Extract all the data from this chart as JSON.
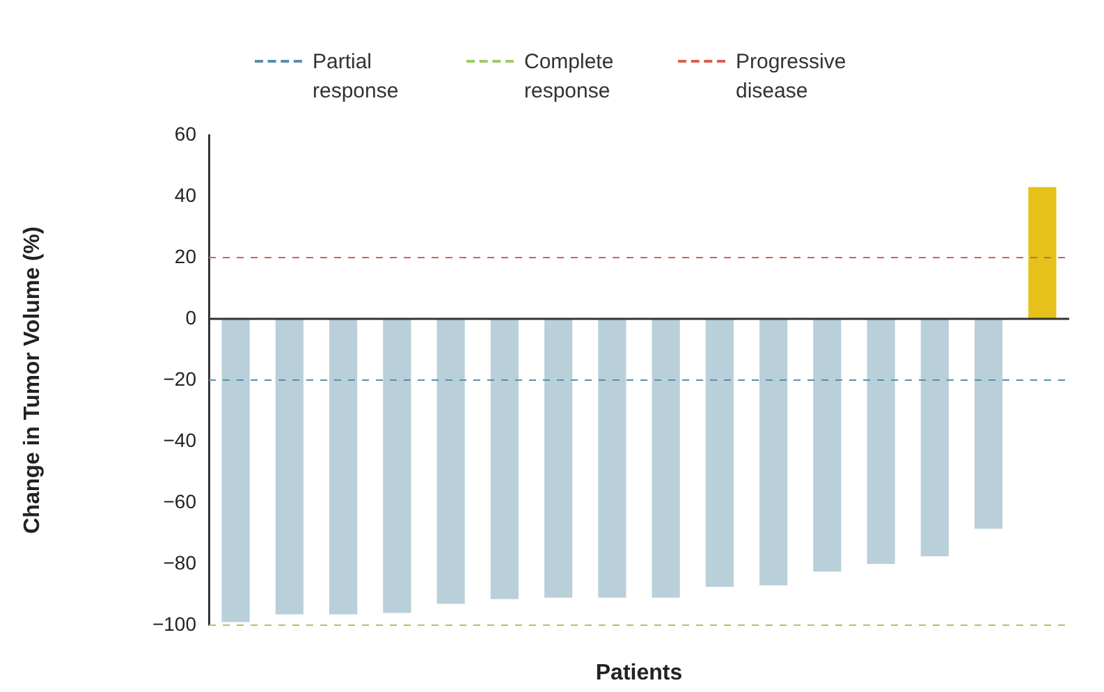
{
  "chart_data": {
    "type": "bar",
    "xlabel": "Patients",
    "ylabel": "Change in Tumor Volume (%)",
    "categories": [
      null,
      null,
      null,
      null,
      null,
      null,
      null,
      null,
      null,
      null,
      null,
      null,
      null,
      null,
      null,
      null
    ],
    "values": [
      -99,
      -96.5,
      -96.5,
      -96,
      -93,
      -91.5,
      -91,
      -91,
      -91,
      -87.5,
      -87,
      -82.5,
      -80,
      -77.5,
      -68.5,
      43
    ],
    "colors": [
      "#b9cfd9",
      "#b9cfd9",
      "#b9cfd9",
      "#b9cfd9",
      "#b9cfd9",
      "#b9cfd9",
      "#b9cfd9",
      "#b9cfd9",
      "#b9cfd9",
      "#b9cfd9",
      "#b9cfd9",
      "#b9cfd9",
      "#b9cfd9",
      "#b9cfd9",
      "#b9cfd9",
      "#e6c11a"
    ],
    "ylim": [
      -100,
      60
    ],
    "yticks": [
      -100,
      -80,
      -60,
      -40,
      -20,
      0,
      20,
      40,
      60
    ],
    "grid": false,
    "legend": "top",
    "ref_lines": [
      {
        "axis": "y",
        "value": -20,
        "label": "Partial response",
        "color": "#5b8fa8",
        "line_style": "dashed"
      },
      {
        "axis": "y",
        "value": -100,
        "label": "Complete response",
        "color": "#9ccc65",
        "line_style": "dashed"
      },
      {
        "axis": "y",
        "value": 20,
        "label": "Progressive disease",
        "color": "#d9604f",
        "line_style": "dashed"
      }
    ]
  }
}
